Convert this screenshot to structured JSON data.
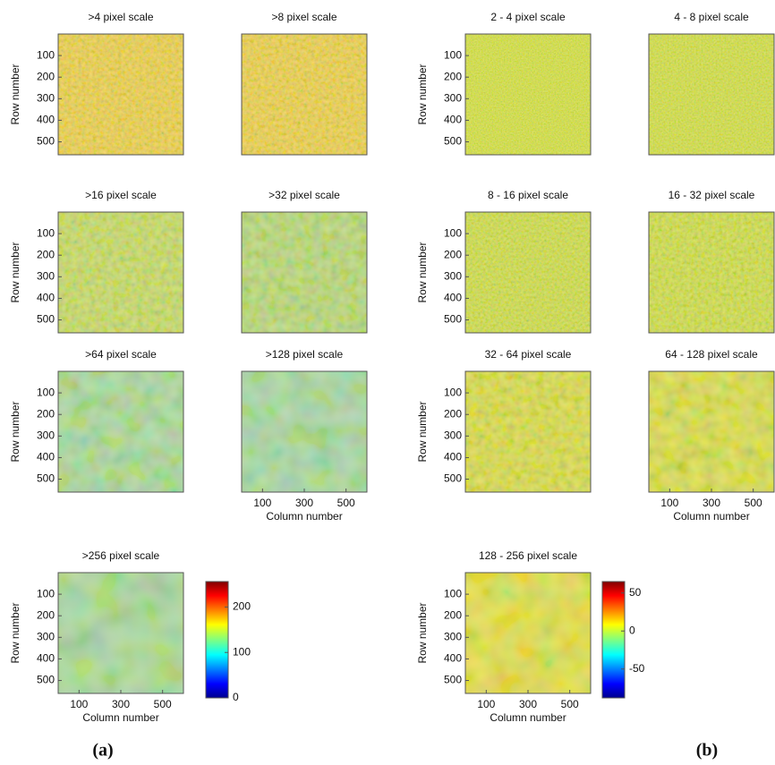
{
  "chart_data": [
    {
      "type": "heatmap",
      "title": ">4 pixel scale",
      "ylabel": "Row number",
      "yticks": [
        100,
        200,
        300,
        400,
        500
      ],
      "ylim": [
        0,
        560
      ]
    },
    {
      "type": "heatmap",
      "title": ">8 pixel scale"
    },
    {
      "type": "heatmap",
      "title": ">16 pixel scale",
      "ylabel": "Row number",
      "yticks": [
        100,
        200,
        300,
        400,
        500
      ],
      "ylim": [
        0,
        560
      ]
    },
    {
      "type": "heatmap",
      "title": ">32 pixel scale"
    },
    {
      "type": "heatmap",
      "title": ">64 pixel scale",
      "ylabel": "Row number",
      "yticks": [
        100,
        200,
        300,
        400,
        500
      ],
      "ylim": [
        0,
        560
      ]
    },
    {
      "type": "heatmap",
      "title": ">128 pixel scale",
      "xlabel": "Column number",
      "xticks": [
        100,
        300,
        500
      ],
      "xlim": [
        0,
        600
      ]
    },
    {
      "type": "heatmap",
      "title": ">256 pixel scale",
      "ylabel": "Row number",
      "xlabel": "Column number",
      "yticks": [
        100,
        200,
        300,
        400,
        500
      ],
      "ylim": [
        0,
        560
      ],
      "xticks": [
        100,
        300,
        500
      ],
      "xlim": [
        0,
        600
      ]
    },
    {
      "type": "heatmap",
      "title": "2 - 4 pixel scale",
      "ylabel": "Row number",
      "yticks": [
        100,
        200,
        300,
        400,
        500
      ],
      "ylim": [
        0,
        560
      ]
    },
    {
      "type": "heatmap",
      "title": "4 - 8 pixel scale"
    },
    {
      "type": "heatmap",
      "title": "8 - 16 pixel scale",
      "ylabel": "Row number",
      "yticks": [
        100,
        200,
        300,
        400,
        500
      ],
      "ylim": [
        0,
        560
      ]
    },
    {
      "type": "heatmap",
      "title": "16 - 32 pixel scale"
    },
    {
      "type": "heatmap",
      "title": "32 - 64 pixel scale",
      "ylabel": "Row number",
      "yticks": [
        100,
        200,
        300,
        400,
        500
      ],
      "ylim": [
        0,
        560
      ]
    },
    {
      "type": "heatmap",
      "title": "64 - 128 pixel scale",
      "xlabel": "Column number",
      "xticks": [
        100,
        300,
        500
      ],
      "xlim": [
        0,
        600
      ]
    },
    {
      "type": "heatmap",
      "title": "128 - 256 pixel scale",
      "ylabel": "Row number",
      "xlabel": "Column number",
      "yticks": [
        100,
        200,
        300,
        400,
        500
      ],
      "ylim": [
        0,
        560
      ],
      "xticks": [
        100,
        300,
        500
      ],
      "xlim": [
        0,
        600
      ]
    },
    {
      "type": "colorbar",
      "yticks": [
        0,
        100,
        200
      ],
      "ylim": [
        0,
        256
      ]
    },
    {
      "type": "colorbar",
      "yticks": [
        -50,
        0,
        50
      ],
      "ylim": [
        -88,
        65
      ]
    }
  ],
  "panel_labels": [
    "(a)",
    "(b)"
  ]
}
